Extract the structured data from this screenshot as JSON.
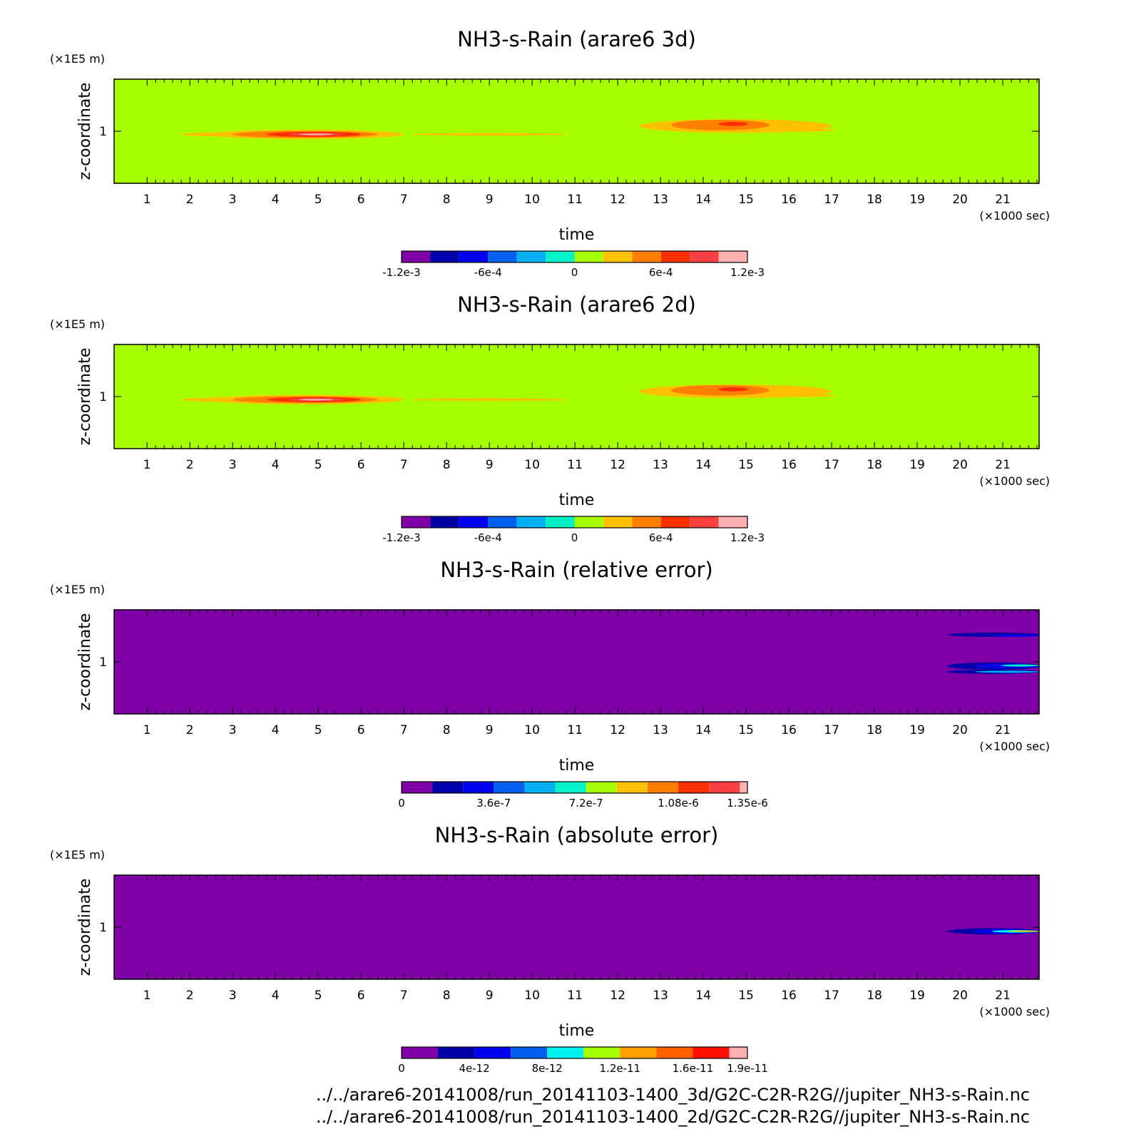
{
  "chart_data": [
    {
      "type": "heatmap",
      "title": "NH3-s-Rain (arare6 3d)",
      "xlabel": "time",
      "ylabel": "z-coordinate",
      "x_unit": "(×1000 sec)",
      "y_unit": "(×1E5 m)",
      "x_ticks": [
        "1",
        "2",
        "3",
        "4",
        "5",
        "6",
        "7",
        "8",
        "9",
        "10",
        "11",
        "12",
        "13",
        "14",
        "15",
        "16",
        "17",
        "18",
        "19",
        "20",
        "21"
      ],
      "y_ticks": [
        "1"
      ],
      "xlim": [
        0.23,
        21.85
      ],
      "ylim": [
        0.5,
        1.5
      ],
      "colorbar": {
        "levels": [
          -0.0012,
          -0.001,
          -0.0008,
          -0.0006,
          -0.0004,
          -0.0002,
          0,
          0.0002,
          0.0004,
          0.0006,
          0.0008,
          0.001,
          0.0012
        ],
        "labels": [
          {
            "value": -0.0012,
            "text": "-1.2e-3"
          },
          {
            "value": -0.0006,
            "text": "-6e-4"
          },
          {
            "value": 0,
            "text": "0"
          },
          {
            "value": 0.0006,
            "text": "6e-4"
          },
          {
            "value": 0.0012,
            "text": "1.2e-3"
          }
        ],
        "colors": [
          "#8000a8",
          "#0000a8",
          "#0000f0",
          "#0060f0",
          "#00b0f0",
          "#00f0c8",
          "#a8ff00",
          "#ffc000",
          "#ff8000",
          "#ff3000",
          "#ff4040",
          "#ffb0b0"
        ]
      },
      "background_color": "#a8ff00",
      "features": [
        {
          "x": 3.6,
          "y": 0.97,
          "w": 3.6,
          "h": 0.05,
          "color": "#ffc000"
        },
        {
          "x": 4.7,
          "y": 0.97,
          "w": 4.6,
          "h": 0.09,
          "color": "#ffc000"
        },
        {
          "x": 4.7,
          "y": 0.97,
          "w": 3.4,
          "h": 0.065,
          "color": "#ff8000"
        },
        {
          "x": 4.9,
          "y": 0.97,
          "w": 2.2,
          "h": 0.05,
          "color": "#ff3000"
        },
        {
          "x": 4.95,
          "y": 0.97,
          "w": 1.3,
          "h": 0.03,
          "color": "#ff4040"
        },
        {
          "x": 4.95,
          "y": 0.97,
          "w": 0.8,
          "h": 0.015,
          "color": "#ffb0b0"
        },
        {
          "x": 9.0,
          "y": 0.97,
          "w": 3.6,
          "h": 0.025,
          "color": "#ffc000"
        },
        {
          "x": 14.75,
          "y": 1.05,
          "w": 4.5,
          "h": 0.13,
          "color": "#ffc000"
        },
        {
          "x": 16.0,
          "y": 1.01,
          "w": 2.2,
          "h": 0.03,
          "color": "#ffc000"
        },
        {
          "x": 14.4,
          "y": 1.06,
          "w": 2.3,
          "h": 0.1,
          "color": "#ff8000"
        },
        {
          "x": 14.7,
          "y": 1.07,
          "w": 0.7,
          "h": 0.04,
          "color": "#ff3000"
        }
      ]
    },
    {
      "type": "heatmap",
      "title": "NH3-s-Rain (arare6 2d)",
      "xlabel": "time",
      "ylabel": "z-coordinate",
      "x_unit": "(×1000 sec)",
      "y_unit": "(×1E5 m)",
      "x_ticks": [
        "1",
        "2",
        "3",
        "4",
        "5",
        "6",
        "7",
        "8",
        "9",
        "10",
        "11",
        "12",
        "13",
        "14",
        "15",
        "16",
        "17",
        "18",
        "19",
        "20",
        "21"
      ],
      "y_ticks": [
        "1"
      ],
      "xlim": [
        0.23,
        21.85
      ],
      "ylim": [
        0.5,
        1.5
      ],
      "colorbar": {
        "levels": [
          -0.0012,
          -0.001,
          -0.0008,
          -0.0006,
          -0.0004,
          -0.0002,
          0,
          0.0002,
          0.0004,
          0.0006,
          0.0008,
          0.001,
          0.0012
        ],
        "labels": [
          {
            "value": -0.0012,
            "text": "-1.2e-3"
          },
          {
            "value": -0.0006,
            "text": "-6e-4"
          },
          {
            "value": 0,
            "text": "0"
          },
          {
            "value": 0.0006,
            "text": "6e-4"
          },
          {
            "value": 0.0012,
            "text": "1.2e-3"
          }
        ],
        "colors": [
          "#8000a8",
          "#0000a8",
          "#0000f0",
          "#0060f0",
          "#00b0f0",
          "#00f0c8",
          "#a8ff00",
          "#ffc000",
          "#ff8000",
          "#ff3000",
          "#ff4040",
          "#ffb0b0"
        ]
      },
      "background_color": "#a8ff00",
      "features": [
        {
          "x": 3.6,
          "y": 0.97,
          "w": 3.6,
          "h": 0.05,
          "color": "#ffc000"
        },
        {
          "x": 4.7,
          "y": 0.97,
          "w": 4.6,
          "h": 0.09,
          "color": "#ffc000"
        },
        {
          "x": 4.7,
          "y": 0.97,
          "w": 3.4,
          "h": 0.065,
          "color": "#ff8000"
        },
        {
          "x": 4.9,
          "y": 0.97,
          "w": 2.2,
          "h": 0.05,
          "color": "#ff3000"
        },
        {
          "x": 4.95,
          "y": 0.97,
          "w": 1.3,
          "h": 0.03,
          "color": "#ff4040"
        },
        {
          "x": 4.95,
          "y": 0.97,
          "w": 0.8,
          "h": 0.015,
          "color": "#ffb0b0"
        },
        {
          "x": 9.0,
          "y": 0.97,
          "w": 3.6,
          "h": 0.025,
          "color": "#ffc000"
        },
        {
          "x": 14.75,
          "y": 1.05,
          "w": 4.5,
          "h": 0.13,
          "color": "#ffc000"
        },
        {
          "x": 16.0,
          "y": 1.01,
          "w": 2.2,
          "h": 0.03,
          "color": "#ffc000"
        },
        {
          "x": 14.4,
          "y": 1.06,
          "w": 2.3,
          "h": 0.1,
          "color": "#ff8000"
        },
        {
          "x": 14.7,
          "y": 1.07,
          "w": 0.7,
          "h": 0.04,
          "color": "#ff3000"
        }
      ]
    },
    {
      "type": "heatmap",
      "title": "NH3-s-Rain (relative error)",
      "xlabel": "time",
      "ylabel": "z-coordinate",
      "x_unit": "(×1000 sec)",
      "y_unit": "(×1E5 m)",
      "x_ticks": [
        "1",
        "2",
        "3",
        "4",
        "5",
        "6",
        "7",
        "8",
        "9",
        "10",
        "11",
        "12",
        "13",
        "14",
        "15",
        "16",
        "17",
        "18",
        "19",
        "20",
        "21"
      ],
      "y_ticks": [
        "1"
      ],
      "xlim": [
        0.23,
        21.85
      ],
      "ylim": [
        0.5,
        1.5
      ],
      "colorbar": {
        "levels": [
          0,
          1.2e-07,
          2.4e-07,
          3.6e-07,
          4.8e-07,
          6e-07,
          7.2e-07,
          8.4e-07,
          9.6e-07,
          1.08e-06,
          1.2e-06,
          1.32e-06,
          1.35e-06
        ],
        "labels": [
          {
            "value": 0,
            "text": "0"
          },
          {
            "value": 3.6e-07,
            "text": "3.6e-7"
          },
          {
            "value": 7.2e-07,
            "text": "7.2e-7"
          },
          {
            "value": 1.08e-06,
            "text": "1.08e-6"
          },
          {
            "value": 1.35e-06,
            "text": "1.35e-6"
          }
        ],
        "colors": [
          "#8000a8",
          "#0000a8",
          "#0000f0",
          "#0060f0",
          "#00b0f0",
          "#00f0c8",
          "#a8ff00",
          "#ffc000",
          "#ff8000",
          "#ff3000",
          "#ff4040",
          "#ffb0b0"
        ]
      },
      "background_color": "#8000a8",
      "features": [
        {
          "x": 20.8,
          "y": 1.26,
          "w": 2.2,
          "h": 0.04,
          "color": "#0000a8"
        },
        {
          "x": 21.3,
          "y": 1.25,
          "w": 1.1,
          "h": 0.02,
          "color": "#0000f0"
        },
        {
          "x": 20.8,
          "y": 0.96,
          "w": 2.2,
          "h": 0.07,
          "color": "#0000a8"
        },
        {
          "x": 21.1,
          "y": 0.96,
          "w": 1.5,
          "h": 0.04,
          "color": "#0000f0"
        },
        {
          "x": 21.4,
          "y": 0.965,
          "w": 0.9,
          "h": 0.02,
          "color": "#00f0c8"
        },
        {
          "x": 20.8,
          "y": 0.905,
          "w": 2.2,
          "h": 0.04,
          "color": "#0000a8"
        },
        {
          "x": 21.1,
          "y": 0.905,
          "w": 1.5,
          "h": 0.02,
          "color": "#00b0f0"
        }
      ]
    },
    {
      "type": "heatmap",
      "title": "NH3-s-Rain (absolute error)",
      "xlabel": "time",
      "ylabel": "z-coordinate",
      "x_unit": "(×1000 sec)",
      "y_unit": "(×1E5 m)",
      "x_ticks": [
        "1",
        "2",
        "3",
        "4",
        "5",
        "6",
        "7",
        "8",
        "9",
        "10",
        "11",
        "12",
        "13",
        "14",
        "15",
        "16",
        "17",
        "18",
        "19",
        "20",
        "21"
      ],
      "y_ticks": [
        "1"
      ],
      "xlim": [
        0.23,
        21.85
      ],
      "ylim": [
        0.5,
        1.5
      ],
      "colorbar": {
        "levels": [
          0,
          2e-12,
          4e-12,
          6e-12,
          8e-12,
          1e-11,
          1.2e-11,
          1.4e-11,
          1.6e-11,
          1.8e-11,
          1.9e-11
        ],
        "labels": [
          {
            "value": 0,
            "text": "0"
          },
          {
            "value": 4e-12,
            "text": "4e-12"
          },
          {
            "value": 8e-12,
            "text": "8e-12"
          },
          {
            "value": 1.2e-11,
            "text": "1.2e-11"
          },
          {
            "value": 1.6e-11,
            "text": "1.6e-11"
          },
          {
            "value": 1.9e-11,
            "text": "1.9e-11"
          }
        ],
        "colors": [
          "#8000a8",
          "#0000a8",
          "#0000f0",
          "#0060f0",
          "#00f0f0",
          "#a8ff00",
          "#ffa000",
          "#ff6000",
          "#ff1000",
          "#ffb0b0"
        ]
      },
      "background_color": "#8000a8",
      "features": [
        {
          "x": 20.8,
          "y": 0.96,
          "w": 2.2,
          "h": 0.06,
          "color": "#0000a8"
        },
        {
          "x": 21.1,
          "y": 0.96,
          "w": 1.6,
          "h": 0.04,
          "color": "#0000f0"
        },
        {
          "x": 21.3,
          "y": 0.96,
          "w": 1.1,
          "h": 0.025,
          "color": "#00f0f0"
        },
        {
          "x": 21.5,
          "y": 0.962,
          "w": 0.7,
          "h": 0.015,
          "color": "#a8ff00"
        },
        {
          "x": 21.6,
          "y": 0.962,
          "w": 0.5,
          "h": 0.01,
          "color": "#ffa000"
        }
      ]
    }
  ],
  "footer": {
    "files": [
      "../../arare6-20141008/run_20141103-1400_3d/G2C-C2R-R2G//jupiter_NH3-s-Rain.nc",
      "../../arare6-20141008/run_20141103-1400_2d/G2C-C2R-R2G//jupiter_NH3-s-Rain.nc"
    ]
  }
}
